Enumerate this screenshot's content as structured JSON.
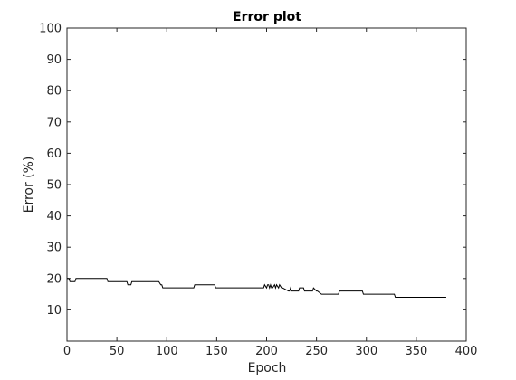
{
  "chart_data": {
    "type": "line",
    "title": "Error plot",
    "xlabel": "Epoch",
    "ylabel": "Error (%)",
    "xlim": [
      0,
      400
    ],
    "ylim": [
      0,
      100
    ],
    "xticks": [
      0,
      50,
      100,
      150,
      200,
      250,
      300,
      350,
      400
    ],
    "yticks": [
      10,
      20,
      30,
      40,
      50,
      60,
      70,
      80,
      90,
      100
    ],
    "grid": false,
    "line_color": "#000000",
    "series": [
      {
        "x": [
          0,
          2,
          3,
          8,
          9,
          40,
          41,
          60,
          61,
          64,
          65,
          92,
          94,
          95,
          96,
          127,
          128,
          148,
          149,
          197,
          198,
          200,
          201,
          202,
          203,
          204,
          205,
          206,
          208,
          209,
          210,
          212,
          213,
          215,
          216,
          222,
          223,
          224,
          225,
          232,
          233,
          237,
          238,
          246,
          247,
          250,
          251,
          255,
          256,
          272,
          273,
          296,
          297,
          328,
          329,
          380
        ],
        "y": [
          20,
          20,
          19,
          19,
          20,
          20,
          19,
          19,
          18,
          18,
          19,
          19,
          18,
          18,
          17,
          17,
          18,
          18,
          17,
          17,
          18,
          17,
          18,
          18,
          17,
          18,
          17,
          17,
          18,
          17,
          18,
          17,
          18,
          17,
          17,
          16,
          16,
          17,
          16,
          16,
          17,
          17,
          16,
          16,
          17,
          16,
          16,
          15,
          15,
          15,
          16,
          16,
          15,
          15,
          14,
          14
        ]
      }
    ]
  }
}
